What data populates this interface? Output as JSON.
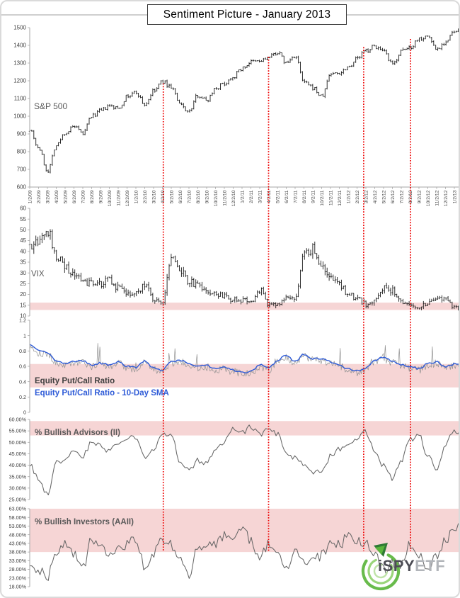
{
  "title": "Sentiment Picture - January 2013",
  "colors": {
    "band_pink": "#f6d5d5",
    "red_dotted": "#ee0000",
    "sma_blue": "#2e5bd7",
    "bar_black": "#1a1a1a",
    "line_gray": "#666666",
    "raw_gray": "#909090",
    "axis_gray": "#a6a6a6",
    "tick_text": "#404040",
    "label_gray": "#595959",
    "logo_green": "#5bb53c",
    "logo_green_dark": "#2f7a35",
    "logo_text_dark": "#4d4d55",
    "logo_text_light": "#b2b5ba"
  },
  "x_labels": [
    "1/2/09",
    "2/2/09",
    "3/2/09",
    "4/2/09",
    "5/2/09",
    "6/2/09",
    "7/2/09",
    "8/2/09",
    "9/2/09",
    "10/2/09",
    "11/2/09",
    "12/2/09",
    "1/2/10",
    "2/2/10",
    "3/2/10",
    "4/2/10",
    "5/2/10",
    "6/2/10",
    "7/2/10",
    "8/2/10",
    "9/2/10",
    "10/2/10",
    "11/2/10",
    "12/2/10",
    "1/2/11",
    "2/2/11",
    "3/2/11",
    "4/2/11",
    "5/2/11",
    "6/2/11",
    "7/2/11",
    "8/2/11",
    "9/2/11",
    "10/2/11",
    "11/2/11",
    "12/2/11",
    "1/2/12",
    "2/2/12",
    "3/2/12",
    "4/2/12",
    "5/2/12",
    "6/2/12",
    "7/2/12",
    "8/2/12",
    "9/2/12",
    "10/2/12",
    "11/2/12",
    "12/2/12",
    "1/2/13"
  ],
  "red_lines": {
    "description": "vertical dotted event lines at market swing highs",
    "events": [
      {
        "x_month": 15.1,
        "sp500_level": 1185
      },
      {
        "x_month": 27.0,
        "sp500_level": 1335
      },
      {
        "x_month": 37.75,
        "sp500_level": 1390
      },
      {
        "x_month": 43.05,
        "sp500_level": 1436
      }
    ]
  },
  "chart_data": [
    {
      "type": "ohlc",
      "name": "sp500",
      "label": "S&P 500",
      "ylim": [
        600,
        1500
      ],
      "yticks": [
        [
          1500,
          "1500"
        ],
        [
          1400,
          "1400"
        ],
        [
          1300,
          "1300"
        ],
        [
          1200,
          "1200"
        ],
        [
          1100,
          "1100"
        ],
        [
          1000,
          "1000"
        ],
        [
          900,
          "900"
        ],
        [
          800,
          "800"
        ],
        [
          700,
          "700"
        ],
        [
          600,
          "600"
        ]
      ],
      "band": null,
      "color": "#1a1a1a",
      "monthly_close": [
        930,
        820,
        690,
        835,
        905,
        940,
        900,
        1000,
        1030,
        1055,
        1045,
        1110,
        1135,
        1065,
        1140,
        1195,
        1165,
        1065,
        1025,
        1120,
        1090,
        1160,
        1185,
        1225,
        1270,
        1305,
        1310,
        1330,
        1360,
        1300,
        1340,
        1190,
        1160,
        1110,
        1240,
        1245,
        1280,
        1325,
        1370,
        1395,
        1360,
        1290,
        1365,
        1390,
        1440,
        1450,
        1380,
        1420,
        1475
      ]
    },
    {
      "type": "ohlc",
      "name": "vix",
      "label": "VIX",
      "ylim": [
        10,
        60
      ],
      "yticks": [
        [
          60,
          "60"
        ],
        [
          55,
          "55"
        ],
        [
          50,
          "50"
        ],
        [
          45,
          "45"
        ],
        [
          40,
          "40"
        ],
        [
          35,
          "35"
        ],
        [
          30,
          "30"
        ],
        [
          25,
          "25"
        ],
        [
          20,
          "20"
        ],
        [
          15,
          "15"
        ],
        [
          10,
          "10"
        ]
      ],
      "band": [
        12.8,
        16.2
      ],
      "color": "#1a1a1a",
      "monthly_close": [
        43,
        45,
        50,
        38,
        33,
        29,
        26,
        25,
        25,
        27,
        23,
        21,
        20,
        25,
        18,
        16.5,
        38,
        31,
        26,
        24,
        22,
        20,
        19,
        17.5,
        17,
        16.5,
        22,
        15.5,
        16,
        18,
        17.5,
        38,
        41,
        33,
        29,
        25,
        20,
        18,
        15.5,
        17,
        23,
        22,
        17,
        15,
        14.5,
        16,
        17.5,
        17.5,
        13.8
      ]
    },
    {
      "type": "line",
      "name": "equity_put_call",
      "ylim": [
        0,
        1.2
      ],
      "yticks": [
        [
          1.2,
          "1.2"
        ],
        [
          1,
          "1"
        ],
        [
          0.8,
          "0.8"
        ],
        [
          0.6,
          "0.6"
        ],
        [
          0.4,
          "0.4"
        ],
        [
          0.2,
          "0.2"
        ],
        [
          0,
          "0"
        ]
      ],
      "band": [
        0.325,
        0.63
      ],
      "series": [
        {
          "name": "Equity Put/Call Ratio",
          "color": "#909090",
          "monthly": [
            0.86,
            0.78,
            0.76,
            0.64,
            0.62,
            0.64,
            0.65,
            0.6,
            0.62,
            0.6,
            0.64,
            0.58,
            0.56,
            0.65,
            0.56,
            0.53,
            0.64,
            0.66,
            0.62,
            0.58,
            0.59,
            0.56,
            0.57,
            0.53,
            0.5,
            0.51,
            0.6,
            0.55,
            0.66,
            0.72,
            0.64,
            0.74,
            0.68,
            0.68,
            0.64,
            0.6,
            0.55,
            0.52,
            0.56,
            0.66,
            0.7,
            0.64,
            0.6,
            0.58,
            0.55,
            0.61,
            0.64,
            0.58,
            0.61
          ]
        },
        {
          "name": "Equity Put/Call Ratio - 10-Day SMA",
          "color": "#2e5bd7",
          "monthly": [
            0.88,
            0.8,
            0.78,
            0.66,
            0.64,
            0.66,
            0.67,
            0.62,
            0.64,
            0.62,
            0.66,
            0.6,
            0.58,
            0.67,
            0.58,
            0.55,
            0.66,
            0.68,
            0.64,
            0.6,
            0.61,
            0.58,
            0.59,
            0.55,
            0.52,
            0.53,
            0.62,
            0.57,
            0.68,
            0.74,
            0.66,
            0.76,
            0.7,
            0.7,
            0.66,
            0.62,
            0.57,
            0.54,
            0.58,
            0.68,
            0.72,
            0.66,
            0.62,
            0.6,
            0.57,
            0.63,
            0.66,
            0.6,
            0.63
          ]
        }
      ]
    },
    {
      "type": "line",
      "name": "bullish_advisors_ii",
      "label": "% Bullish Advisors (II)",
      "ylim": [
        25,
        60
      ],
      "yticks": [
        [
          60,
          "60.00%"
        ],
        [
          55,
          "55.00%"
        ],
        [
          50,
          "50.00%"
        ],
        [
          45,
          "45.00%"
        ],
        [
          40,
          "40.00%"
        ],
        [
          35,
          "35.00%"
        ],
        [
          30,
          "30.00%"
        ],
        [
          25,
          "25.00%"
        ]
      ],
      "band": [
        53,
        59.3
      ],
      "series": [
        {
          "name": "% Bullish Advisors (II)",
          "color": "#666666",
          "monthly": [
            40,
            34,
            27.5,
            42,
            42,
            46,
            44,
            50,
            49,
            46,
            50,
            52,
            52,
            44,
            46.5,
            53.5,
            54,
            41,
            37.5,
            42,
            41,
            46,
            50,
            55.5,
            54,
            57,
            53.5,
            55.5,
            54,
            46,
            43,
            40,
            37,
            36.5,
            44,
            47,
            50,
            52,
            54.5,
            46,
            40,
            34.5,
            42,
            51,
            53,
            44,
            38.5,
            49,
            55
          ]
        }
      ]
    },
    {
      "type": "line",
      "name": "bullish_investors_aaii",
      "label": "% Bullish Investors (AAII)",
      "ylim": [
        18,
        63
      ],
      "yticks": [
        [
          63,
          "63.00%"
        ],
        [
          58,
          "58.00%"
        ],
        [
          53,
          "53.00%"
        ],
        [
          48,
          "48.00%"
        ],
        [
          43,
          "43.00%"
        ],
        [
          38,
          "38.00%"
        ],
        [
          33,
          "33.00%"
        ],
        [
          28,
          "28.00%"
        ],
        [
          23,
          "23.00%"
        ],
        [
          18,
          "18.00%"
        ]
      ],
      "band": [
        38,
        63
      ],
      "series": [
        {
          "name": "% Bullish Investors (AAII)",
          "color": "#666666",
          "monthly": [
            27,
            28,
            24,
            36,
            42,
            38,
            28,
            45,
            40,
            38,
            40,
            42,
            46,
            30,
            38,
            44,
            42,
            34,
            24,
            40,
            44,
            42,
            47,
            48,
            52,
            44,
            36,
            42,
            38,
            30,
            38,
            32,
            33,
            36,
            42,
            42,
            48,
            44,
            44,
            36,
            28,
            32,
            30,
            43,
            36,
            30,
            36,
            44,
            52
          ]
        }
      ]
    }
  ],
  "logo": {
    "i": "i",
    "spy": "SPY",
    "etf": "ETF"
  }
}
